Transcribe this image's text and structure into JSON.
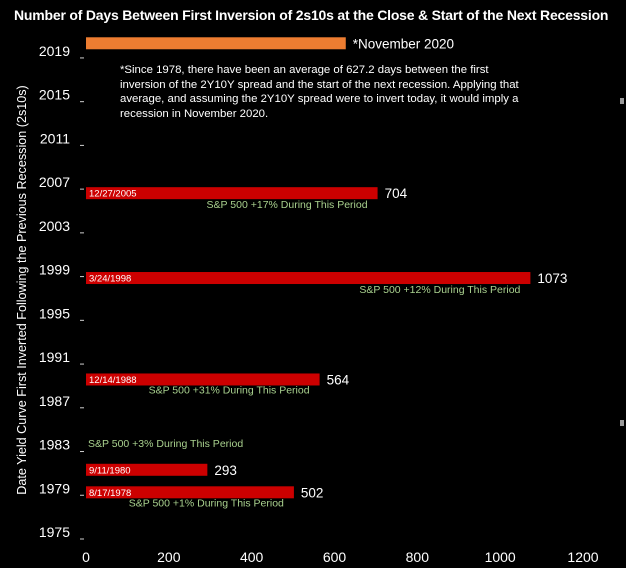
{
  "chart_data": {
    "type": "bar",
    "orientation": "horizontal",
    "title": "Number of Days Between First Inversion of 2s10s at the Close & Start of the Next Recession",
    "ylabel": "Date Yield Curve First Inverted Following the Previous Recession (2s10s)",
    "xlabel": "",
    "xlim": [
      0,
      1200
    ],
    "xticks": [
      "0",
      "200",
      "400",
      "600",
      "800",
      "1000",
      "1200"
    ],
    "ylim": [
      1975,
      2020
    ],
    "yticks": [
      "1975",
      "1979",
      "1983",
      "1987",
      "1991",
      "1995",
      "1999",
      "2003",
      "2007",
      "2011",
      "2015",
      "2019"
    ],
    "grid": false,
    "bars": [
      {
        "start": "8/17/1978",
        "year": 1978.63,
        "days": 502,
        "value_label": "502",
        "note": "S&P 500 +1% During This Period",
        "color": "#cc0000"
      },
      {
        "start": "9/11/1980",
        "year": 1980.69,
        "days": 293,
        "value_label": "293",
        "note": "S&P 500 +3% During This Period",
        "color": "#cc0000"
      },
      {
        "start": "12/14/1988",
        "year": 1988.95,
        "days": 564,
        "value_label": "564",
        "note": "S&P 500 +31% During This Period",
        "color": "#cc0000"
      },
      {
        "start": "3/24/1998",
        "year": 1998.23,
        "days": 1073,
        "value_label": "1073",
        "note": "S&P 500 +12% During This Period",
        "color": "#cc0000"
      },
      {
        "start": "12/27/2005",
        "year": 2005.99,
        "days": 704,
        "value_label": "704",
        "note": "S&P 500 +17% During This Period",
        "color": "#cc0000"
      },
      {
        "start": "",
        "year": 2019.7,
        "days": 627.2,
        "value_label": "*November 2020",
        "note": "",
        "color": "#ed7d31"
      }
    ],
    "annotation": "*Since 1978, there have been an average of 627.2 days between the first inversion of the 2Y10Y spread and the start of the next recession. Applying that average, and assuming the 2Y10Y spread were to invert today, it would imply a recession in November  2020.",
    "colors": {
      "background": "#000000",
      "bar": "#cc0000",
      "projection": "#ed7d31",
      "note_text": "#a9d18e",
      "text": "#ffffff"
    }
  }
}
